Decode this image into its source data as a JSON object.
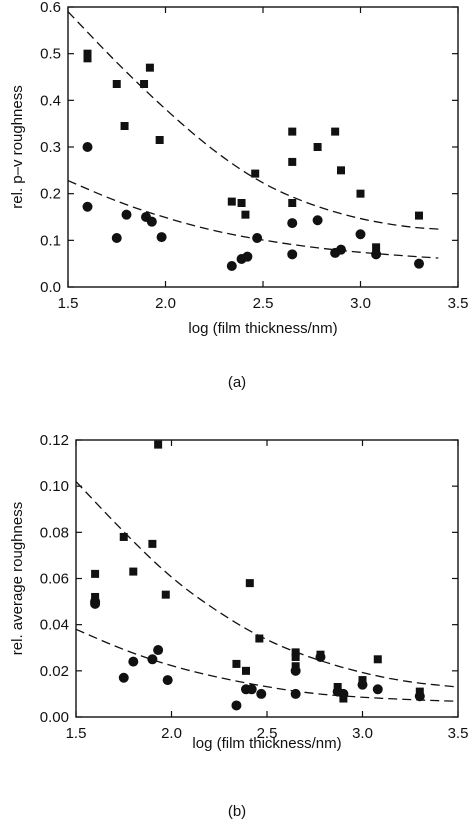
{
  "chart_data": [
    {
      "type": "scatter",
      "panel_label": "(a)",
      "xlabel": "log (film thickness/nm)",
      "ylabel": "rel. p–v roughness",
      "xlim": [
        1.5,
        3.5
      ],
      "ylim": [
        0.0,
        0.6
      ],
      "x_ticks": [
        "1.5",
        "2.0",
        "2.5",
        "3.0",
        "3.5"
      ],
      "y_ticks": [
        "0.0",
        "0.1",
        "0.2",
        "0.3",
        "0.4",
        "0.5",
        "0.6"
      ],
      "grid": false,
      "series": [
        {
          "marker": "square",
          "color": "#111111",
          "points": [
            [
              1.6,
              0.5
            ],
            [
              1.6,
              0.49
            ],
            [
              1.75,
              0.435
            ],
            [
              1.79,
              0.345
            ],
            [
              1.89,
              0.435
            ],
            [
              1.92,
              0.47
            ],
            [
              1.97,
              0.315
            ],
            [
              2.34,
              0.183
            ],
            [
              2.39,
              0.18
            ],
            [
              2.41,
              0.155
            ],
            [
              2.46,
              0.243
            ],
            [
              2.65,
              0.333
            ],
            [
              2.65,
              0.268
            ],
            [
              2.65,
              0.18
            ],
            [
              2.78,
              0.3
            ],
            [
              2.87,
              0.333
            ],
            [
              2.9,
              0.25
            ],
            [
              3.0,
              0.2
            ],
            [
              3.08,
              0.085
            ],
            [
              3.3,
              0.153
            ]
          ]
        },
        {
          "marker": "circle",
          "color": "#111111",
          "points": [
            [
              1.6,
              0.3
            ],
            [
              1.6,
              0.172
            ],
            [
              1.75,
              0.105
            ],
            [
              1.8,
              0.155
            ],
            [
              1.9,
              0.15
            ],
            [
              1.93,
              0.14
            ],
            [
              1.98,
              0.107
            ],
            [
              2.34,
              0.045
            ],
            [
              2.39,
              0.06
            ],
            [
              2.42,
              0.065
            ],
            [
              2.47,
              0.105
            ],
            [
              2.65,
              0.137
            ],
            [
              2.65,
              0.07
            ],
            [
              2.78,
              0.143
            ],
            [
              2.87,
              0.073
            ],
            [
              2.9,
              0.08
            ],
            [
              3.0,
              0.113
            ],
            [
              3.08,
              0.07
            ],
            [
              3.3,
              0.05
            ]
          ]
        }
      ],
      "fit_curves": [
        {
          "style": "dashed",
          "x": [
            1.5,
            1.75,
            2.0,
            2.25,
            2.5,
            2.75,
            3.0,
            3.25,
            3.4
          ],
          "y": [
            0.59,
            0.48,
            0.38,
            0.29,
            0.22,
            0.175,
            0.145,
            0.128,
            0.124
          ]
        },
        {
          "style": "dashed",
          "x": [
            1.5,
            1.75,
            2.0,
            2.25,
            2.5,
            2.75,
            3.0,
            3.25,
            3.4
          ],
          "y": [
            0.228,
            0.183,
            0.148,
            0.12,
            0.1,
            0.085,
            0.074,
            0.066,
            0.062
          ]
        }
      ]
    },
    {
      "type": "scatter",
      "panel_label": "(b)",
      "xlabel": "log (film thickness/nm)",
      "ylabel": "rel. average roughness",
      "xlim": [
        1.5,
        3.5
      ],
      "ylim": [
        0.0,
        0.12
      ],
      "x_ticks": [
        "1.5",
        "2.0",
        "2.5",
        "3.0",
        "3.5"
      ],
      "y_ticks": [
        "0.00",
        "0.02",
        "0.04",
        "0.06",
        "0.08",
        "0.10",
        "0.12"
      ],
      "grid": false,
      "series": [
        {
          "marker": "square",
          "color": "#111111",
          "points": [
            [
              1.6,
              0.062
            ],
            [
              1.6,
              0.052
            ],
            [
              1.75,
              0.078
            ],
            [
              1.8,
              0.063
            ],
            [
              1.9,
              0.075
            ],
            [
              1.93,
              0.118
            ],
            [
              1.97,
              0.053
            ],
            [
              2.34,
              0.023
            ],
            [
              2.39,
              0.02
            ],
            [
              2.41,
              0.058
            ],
            [
              2.46,
              0.034
            ],
            [
              2.65,
              0.028
            ],
            [
              2.65,
              0.026
            ],
            [
              2.65,
              0.022
            ],
            [
              2.78,
              0.027
            ],
            [
              2.87,
              0.013
            ],
            [
              2.9,
              0.008
            ],
            [
              3.0,
              0.016
            ],
            [
              3.08,
              0.025
            ],
            [
              3.3,
              0.011
            ]
          ]
        },
        {
          "marker": "circle",
          "color": "#111111",
          "points": [
            [
              1.6,
              0.05
            ],
            [
              1.6,
              0.049
            ],
            [
              1.75,
              0.017
            ],
            [
              1.8,
              0.024
            ],
            [
              1.9,
              0.025
            ],
            [
              1.93,
              0.029
            ],
            [
              1.98,
              0.016
            ],
            [
              2.34,
              0.005
            ],
            [
              2.39,
              0.012
            ],
            [
              2.42,
              0.012
            ],
            [
              2.47,
              0.01
            ],
            [
              2.65,
              0.02
            ],
            [
              2.65,
              0.01
            ],
            [
              2.78,
              0.026
            ],
            [
              2.87,
              0.011
            ],
            [
              2.9,
              0.01
            ],
            [
              3.0,
              0.014
            ],
            [
              3.08,
              0.012
            ],
            [
              3.3,
              0.009
            ]
          ]
        }
      ],
      "fit_curves": [
        {
          "style": "dashed",
          "x": [
            1.5,
            1.75,
            2.0,
            2.25,
            2.5,
            2.75,
            3.0,
            3.25,
            3.5
          ],
          "y": [
            0.102,
            0.08,
            0.06,
            0.045,
            0.033,
            0.025,
            0.019,
            0.015,
            0.013
          ]
        },
        {
          "style": "dashed",
          "x": [
            1.5,
            1.75,
            2.0,
            2.25,
            2.5,
            2.75,
            3.0,
            3.25,
            3.5
          ],
          "y": [
            0.038,
            0.029,
            0.022,
            0.017,
            0.013,
            0.01,
            0.0085,
            0.0075,
            0.0068
          ]
        }
      ]
    }
  ]
}
